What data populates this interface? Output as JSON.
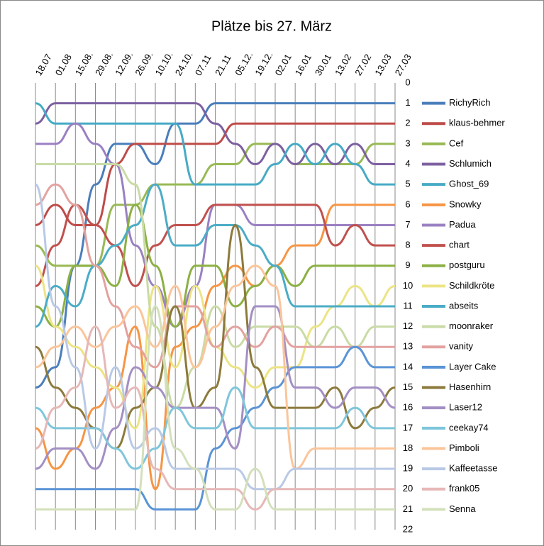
{
  "chart_data": {
    "type": "line",
    "title": "Plätze bis 27. März",
    "categories": [
      "18.07",
      "01.08",
      "15.08.",
      "29.08.",
      "12.09.",
      "26.09.",
      "10.10.",
      "24.10.",
      "07.11",
      "21.11",
      "05.12.",
      "19.12.",
      "02.01",
      "16.01",
      "30.01",
      "13.02",
      "27.02",
      "13.03",
      "27.03"
    ],
    "ylim": [
      0,
      22
    ],
    "y_inverted": true,
    "yticks": [
      0,
      1,
      2,
      3,
      4,
      5,
      6,
      7,
      8,
      9,
      10,
      11,
      12,
      13,
      14,
      15,
      16,
      17,
      18,
      19,
      20,
      21,
      22
    ],
    "grid": true,
    "legend": "right",
    "series": [
      {
        "name": "RichyRich",
        "color": "#4a7ebb",
        "values": [
          15,
          14,
          9,
          5,
          3,
          3,
          4,
          2,
          2,
          1,
          1,
          1,
          1,
          1,
          1,
          1,
          1,
          1,
          1
        ]
      },
      {
        "name": "klaus-behmer",
        "color": "#be4b48",
        "values": [
          7,
          6,
          7,
          7,
          4,
          3,
          3,
          3,
          3,
          3,
          2,
          2,
          2,
          2,
          2,
          2,
          2,
          2,
          2
        ]
      },
      {
        "name": "Cef",
        "color": "#98b954",
        "values": [
          8,
          9,
          9,
          9,
          6,
          6,
          5,
          5,
          5,
          4,
          4,
          3,
          3,
          4,
          4,
          4,
          4,
          3,
          3
        ]
      },
      {
        "name": "Schlumich",
        "color": "#7d60a0",
        "values": [
          2,
          1,
          1,
          1,
          1,
          1,
          1,
          1,
          1,
          2,
          3,
          4,
          3,
          4,
          3,
          4,
          3,
          4,
          4
        ]
      },
      {
        "name": "Ghost_69",
        "color": "#46aac5",
        "values": [
          1,
          2,
          2,
          2,
          2,
          2,
          2,
          2,
          5,
          5,
          5,
          5,
          4,
          3,
          4,
          3,
          4,
          5,
          5
        ]
      },
      {
        "name": "Snowky",
        "color": "#f69544",
        "values": [
          17,
          19,
          18,
          16,
          15,
          12,
          20,
          13,
          12,
          10,
          9,
          10,
          9,
          8,
          8,
          6,
          6,
          6,
          6
        ]
      },
      {
        "name": "Padua",
        "color": "#9a80c2",
        "values": [
          3,
          3,
          2,
          3,
          4,
          8,
          10,
          12,
          10,
          6,
          6,
          7,
          7,
          7,
          7,
          7,
          7,
          7,
          7
        ]
      },
      {
        "name": "chart",
        "color": "#c0504d",
        "values": [
          10,
          8,
          6,
          7,
          8,
          10,
          8,
          7,
          7,
          6,
          6,
          6,
          6,
          6,
          6,
          8,
          7,
          8,
          8
        ]
      },
      {
        "name": "postguru",
        "color": "#8cb043",
        "values": [
          11,
          12,
          9,
          9,
          10,
          6,
          9,
          12,
          9,
          9,
          11,
          10,
          9,
          10,
          9,
          9,
          9,
          9,
          9
        ]
      },
      {
        "name": "Schildkröte",
        "color": "#ece485",
        "values": [
          9,
          12,
          13,
          14,
          15,
          17,
          10,
          14,
          10,
          13,
          14,
          15,
          14,
          14,
          12,
          11,
          10,
          11,
          10
        ]
      },
      {
        "name": "abseits",
        "color": "#4bacc6",
        "values": [
          12,
          10,
          11,
          9,
          8,
          7,
          5,
          8,
          8,
          7,
          7,
          8,
          9,
          11,
          11,
          11,
          11,
          11,
          11
        ]
      },
      {
        "name": "moonraker",
        "color": "#c9dba6",
        "values": [
          4,
          4,
          4,
          4,
          4,
          5,
          12,
          16,
          14,
          11,
          13,
          12,
          12,
          12,
          13,
          12,
          13,
          12,
          12
        ]
      },
      {
        "name": "vanity",
        "color": "#e3a2a0",
        "values": [
          6,
          5,
          6,
          9,
          11,
          13,
          14,
          11,
          11,
          13,
          12,
          13,
          12,
          13,
          13,
          13,
          13,
          13,
          13
        ]
      },
      {
        "name": "Layer Cake",
        "color": "#5a94d6",
        "values": [
          20,
          20,
          20,
          20,
          20,
          20,
          21,
          21,
          21,
          18,
          17,
          16,
          15,
          14,
          14,
          14,
          13,
          14,
          14
        ]
      },
      {
        "name": "Hasenhirn",
        "color": "#8c7a3c",
        "values": [
          13,
          15,
          16,
          17,
          18,
          16,
          15,
          11,
          16,
          15,
          7,
          14,
          16,
          16,
          16,
          15,
          17,
          16,
          15
        ]
      },
      {
        "name": "Laser12",
        "color": "#a38fc4",
        "values": [
          19,
          18,
          18,
          19,
          17,
          14,
          15,
          16,
          16,
          16,
          18,
          11,
          11,
          15,
          15,
          16,
          15,
          15,
          16
        ]
      },
      {
        "name": "ceekay74",
        "color": "#7fc6db",
        "values": [
          16,
          17,
          17,
          17,
          18,
          19,
          18,
          16,
          17,
          17,
          15,
          17,
          17,
          17,
          17,
          17,
          16,
          17,
          17
        ]
      },
      {
        "name": "Pimboli",
        "color": "#fbc59a",
        "values": [
          14,
          13,
          12,
          13,
          12,
          11,
          13,
          10,
          14,
          12,
          10,
          9,
          10,
          19,
          18,
          18,
          18,
          18,
          18
        ]
      },
      {
        "name": "Kaffeetasse",
        "color": "#b9c9e6",
        "values": [
          5,
          11,
          14,
          18,
          14,
          18,
          17,
          19,
          19,
          19,
          19,
          20,
          20,
          19,
          19,
          19,
          19,
          19,
          19
        ]
      },
      {
        "name": "frank05",
        "color": "#e6b8b7",
        "values": [
          18,
          16,
          15,
          12,
          16,
          15,
          19,
          20,
          20,
          20,
          20,
          21,
          20,
          20,
          20,
          20,
          20,
          20,
          20
        ]
      },
      {
        "name": "Senna",
        "color": "#d3e0bb",
        "values": [
          21,
          21,
          21,
          21,
          21,
          21,
          11,
          18,
          19,
          21,
          21,
          19,
          21,
          21,
          21,
          21,
          21,
          21,
          21
        ]
      }
    ]
  }
}
